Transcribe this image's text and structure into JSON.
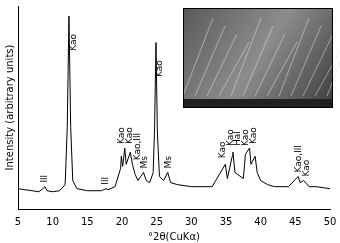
{
  "chart_data": {
    "type": "line",
    "x_label": "°2θ(CuKα)",
    "y_label": "Intensity (arbitrary units)",
    "x": [
      5,
      6,
      7,
      8,
      8.6,
      8.9,
      9.2,
      10,
      11,
      11.8,
      12.1,
      12.35,
      12.6,
      12.9,
      13.5,
      15,
      17,
      17.7,
      18,
      19,
      19.8,
      19.9,
      20.1,
      20.4,
      20.6,
      21.2,
      21.5,
      21.9,
      22.3,
      23.1,
      23.5,
      24,
      24.5,
      24.7,
      24.9,
      25.1,
      25.4,
      26,
      26.6,
      27,
      28,
      30,
      32,
      33,
      34.9,
      35.2,
      35.9,
      36,
      36.3,
      37.5,
      37.8,
      38.4,
      38.6,
      39.2,
      39.5,
      40,
      41,
      42,
      44,
      45.4,
      45.7,
      46.2,
      47,
      48,
      50
    ],
    "values": [
      10,
      9.5,
      9,
      8.5,
      10,
      11,
      9,
      8.5,
      9,
      12,
      40,
      95,
      40,
      14,
      10,
      9,
      9,
      10,
      9.5,
      11,
      20,
      26,
      21,
      30,
      22,
      28,
      22,
      17,
      14,
      18,
      14,
      13,
      18,
      40,
      82,
      38,
      16,
      14,
      18,
      13,
      12,
      11,
      11,
      11,
      22,
      15,
      26,
      28,
      18,
      15,
      27,
      30,
      22,
      26,
      18,
      14,
      12,
      11,
      11,
      16,
      13,
      14,
      11,
      11,
      10
    ],
    "color": "#000000",
    "xlim": [
      5,
      50
    ],
    "xticks": [
      5,
      10,
      15,
      20,
      25,
      30,
      35,
      40,
      45,
      50
    ],
    "ylim": [
      0,
      100
    ],
    "tick_labels": "x",
    "grid": false,
    "annotations": [
      {
        "text": "Ill",
        "x": 8.8,
        "y": 13
      },
      {
        "text": "Kao",
        "x": 13.0,
        "y": 78
      },
      {
        "text": "Ill",
        "x": 17.7,
        "y": 12
      },
      {
        "text": "Kao",
        "x": 20.0,
        "y": 32
      },
      {
        "text": "Kao",
        "x": 21.1,
        "y": 32
      },
      {
        "text": "Kao,Ill",
        "x": 22.2,
        "y": 24
      },
      {
        "text": "Ms",
        "x": 23.2,
        "y": 20
      },
      {
        "text": "Kao",
        "x": 25.4,
        "y": 65
      },
      {
        "text": "Ms",
        "x": 26.8,
        "y": 20
      },
      {
        "text": "Kao",
        "x": 34.5,
        "y": 25
      },
      {
        "text": "Kao",
        "x": 35.6,
        "y": 31
      },
      {
        "text": "Hal",
        "x": 36.7,
        "y": 31
      },
      {
        "text": "Kao",
        "x": 37.9,
        "y": 31
      },
      {
        "text": "Kao",
        "x": 39.0,
        "y": 32
      },
      {
        "text": "Kao,Ill",
        "x": 45.5,
        "y": 18
      },
      {
        "text": "Kao",
        "x": 46.6,
        "y": 16
      }
    ]
  }
}
